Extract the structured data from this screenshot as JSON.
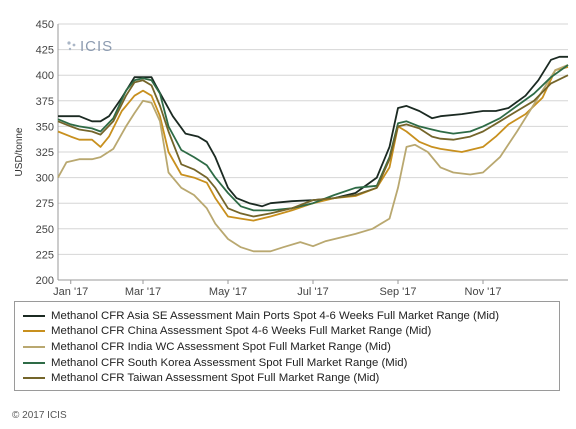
{
  "logo": {
    "text": "ICIS"
  },
  "footer": {
    "copyright": "© 2017 ICIS"
  },
  "chart_data": {
    "type": "line",
    "title": "",
    "xlabel": "",
    "ylabel": "USD/tonne",
    "ylim": [
      200,
      450
    ],
    "xlim": [
      0,
      12
    ],
    "grid": true,
    "legend_position": "bottom",
    "x_ticks": [
      {
        "label": "Jan '17",
        "x": 0.3
      },
      {
        "label": "Mar '17",
        "x": 2
      },
      {
        "label": "May '17",
        "x": 4
      },
      {
        "label": "Jul '17",
        "x": 6
      },
      {
        "label": "Sep '17",
        "x": 8
      },
      {
        "label": "Nov '17",
        "x": 10
      }
    ],
    "y_ticks": [
      200,
      225,
      250,
      275,
      300,
      325,
      350,
      375,
      400,
      425,
      450
    ],
    "series": [
      {
        "name": "Methanol CFR Asia SE Assessment Main Ports Spot 4-6 Weeks Full Market Range (Mid)",
        "color": "#1b2a22",
        "points": [
          [
            0,
            360
          ],
          [
            0.3,
            360
          ],
          [
            0.5,
            360
          ],
          [
            0.8,
            355
          ],
          [
            1,
            355
          ],
          [
            1.2,
            360
          ],
          [
            1.5,
            378
          ],
          [
            1.8,
            398
          ],
          [
            2,
            398
          ],
          [
            2.2,
            398
          ],
          [
            2.3,
            390
          ],
          [
            2.5,
            375
          ],
          [
            2.7,
            360
          ],
          [
            3,
            343
          ],
          [
            3.3,
            340
          ],
          [
            3.5,
            335
          ],
          [
            3.7,
            320
          ],
          [
            4,
            290
          ],
          [
            4.2,
            280
          ],
          [
            4.5,
            275
          ],
          [
            4.8,
            272
          ],
          [
            5,
            275
          ],
          [
            5.5,
            277
          ],
          [
            6,
            278
          ],
          [
            6.5,
            280
          ],
          [
            7,
            285
          ],
          [
            7.5,
            300
          ],
          [
            7.8,
            330
          ],
          [
            8,
            368
          ],
          [
            8.2,
            370
          ],
          [
            8.5,
            365
          ],
          [
            8.8,
            358
          ],
          [
            9,
            360
          ],
          [
            9.5,
            362
          ],
          [
            10,
            365
          ],
          [
            10.3,
            365
          ],
          [
            10.6,
            368
          ],
          [
            11,
            380
          ],
          [
            11.3,
            395
          ],
          [
            11.6,
            415
          ],
          [
            11.8,
            418
          ],
          [
            12,
            418
          ]
        ]
      },
      {
        "name": "Methanol CFR China Assessment Spot 4-6 Weeks Full Market Range (Mid)",
        "color": "#c8901e",
        "points": [
          [
            0,
            345
          ],
          [
            0.3,
            340
          ],
          [
            0.5,
            337
          ],
          [
            0.8,
            337
          ],
          [
            1,
            330
          ],
          [
            1.2,
            340
          ],
          [
            1.5,
            365
          ],
          [
            1.8,
            380
          ],
          [
            2,
            385
          ],
          [
            2.2,
            380
          ],
          [
            2.4,
            360
          ],
          [
            2.6,
            325
          ],
          [
            2.9,
            303
          ],
          [
            3.2,
            300
          ],
          [
            3.5,
            295
          ],
          [
            3.7,
            280
          ],
          [
            4,
            262
          ],
          [
            4.3,
            260
          ],
          [
            4.6,
            258
          ],
          [
            5,
            262
          ],
          [
            5.5,
            268
          ],
          [
            6,
            275
          ],
          [
            6.5,
            280
          ],
          [
            7,
            282
          ],
          [
            7.5,
            290
          ],
          [
            7.8,
            310
          ],
          [
            8,
            350
          ],
          [
            8.2,
            345
          ],
          [
            8.5,
            335
          ],
          [
            8.8,
            330
          ],
          [
            9,
            328
          ],
          [
            9.5,
            325
          ],
          [
            10,
            330
          ],
          [
            10.3,
            340
          ],
          [
            10.6,
            352
          ],
          [
            11,
            362
          ],
          [
            11.4,
            378
          ],
          [
            11.7,
            405
          ],
          [
            12,
            408
          ]
        ]
      },
      {
        "name": "Methanol CFR India WC Assessment Spot Full Market Range (Mid)",
        "color": "#b9a870",
        "points": [
          [
            0,
            300
          ],
          [
            0.2,
            315
          ],
          [
            0.5,
            318
          ],
          [
            0.8,
            318
          ],
          [
            1,
            320
          ],
          [
            1.3,
            328
          ],
          [
            1.6,
            350
          ],
          [
            1.8,
            363
          ],
          [
            2,
            375
          ],
          [
            2.2,
            373
          ],
          [
            2.4,
            355
          ],
          [
            2.6,
            305
          ],
          [
            2.9,
            290
          ],
          [
            3.2,
            283
          ],
          [
            3.5,
            270
          ],
          [
            3.7,
            255
          ],
          [
            4,
            240
          ],
          [
            4.3,
            232
          ],
          [
            4.6,
            228
          ],
          [
            5,
            228
          ],
          [
            5.3,
            232
          ],
          [
            5.7,
            237
          ],
          [
            6,
            233
          ],
          [
            6.3,
            238
          ],
          [
            6.7,
            242
          ],
          [
            7,
            245
          ],
          [
            7.4,
            250
          ],
          [
            7.8,
            260
          ],
          [
            8,
            290
          ],
          [
            8.2,
            330
          ],
          [
            8.4,
            332
          ],
          [
            8.7,
            325
          ],
          [
            9,
            310
          ],
          [
            9.3,
            305
          ],
          [
            9.7,
            303
          ],
          [
            10,
            305
          ],
          [
            10.4,
            320
          ],
          [
            10.8,
            345
          ],
          [
            11.1,
            365
          ],
          [
            11.4,
            385
          ],
          [
            11.7,
            405
          ],
          [
            12,
            410
          ]
        ]
      },
      {
        "name": "Methanol CFR South Korea Assessment Spot Full Market Range (Mid)",
        "color": "#2e6b46",
        "points": [
          [
            0,
            357
          ],
          [
            0.3,
            352
          ],
          [
            0.5,
            350
          ],
          [
            0.8,
            348
          ],
          [
            1,
            345
          ],
          [
            1.3,
            358
          ],
          [
            1.6,
            385
          ],
          [
            1.8,
            395
          ],
          [
            2,
            397
          ],
          [
            2.2,
            395
          ],
          [
            2.4,
            382
          ],
          [
            2.6,
            350
          ],
          [
            2.9,
            327
          ],
          [
            3.2,
            320
          ],
          [
            3.5,
            312
          ],
          [
            3.7,
            300
          ],
          [
            4,
            285
          ],
          [
            4.3,
            272
          ],
          [
            4.6,
            268
          ],
          [
            5,
            268
          ],
          [
            5.5,
            270
          ],
          [
            6,
            275
          ],
          [
            6.5,
            283
          ],
          [
            7,
            290
          ],
          [
            7.5,
            292
          ],
          [
            7.8,
            320
          ],
          [
            8,
            353
          ],
          [
            8.2,
            355
          ],
          [
            8.5,
            350
          ],
          [
            8.8,
            347
          ],
          [
            9,
            345
          ],
          [
            9.3,
            343
          ],
          [
            9.7,
            345
          ],
          [
            10,
            350
          ],
          [
            10.4,
            358
          ],
          [
            10.8,
            370
          ],
          [
            11.2,
            382
          ],
          [
            11.6,
            398
          ],
          [
            12,
            410
          ]
        ]
      },
      {
        "name": "Methanol CFR Taiwan Assessment Spot Full Market Range (Mid)",
        "color": "#74652a",
        "points": [
          [
            0,
            355
          ],
          [
            0.3,
            350
          ],
          [
            0.5,
            347
          ],
          [
            0.8,
            345
          ],
          [
            1,
            342
          ],
          [
            1.3,
            355
          ],
          [
            1.6,
            380
          ],
          [
            1.8,
            393
          ],
          [
            2,
            395
          ],
          [
            2.2,
            390
          ],
          [
            2.4,
            370
          ],
          [
            2.6,
            345
          ],
          [
            2.9,
            313
          ],
          [
            3.2,
            308
          ],
          [
            3.5,
            300
          ],
          [
            3.7,
            290
          ],
          [
            4,
            270
          ],
          [
            4.3,
            265
          ],
          [
            4.6,
            262
          ],
          [
            5,
            265
          ],
          [
            5.5,
            270
          ],
          [
            6,
            278
          ],
          [
            6.5,
            280
          ],
          [
            7,
            283
          ],
          [
            7.5,
            290
          ],
          [
            7.8,
            318
          ],
          [
            8,
            350
          ],
          [
            8.2,
            352
          ],
          [
            8.5,
            348
          ],
          [
            8.8,
            340
          ],
          [
            9,
            338
          ],
          [
            9.3,
            337
          ],
          [
            9.7,
            340
          ],
          [
            10,
            345
          ],
          [
            10.4,
            355
          ],
          [
            10.8,
            365
          ],
          [
            11.2,
            375
          ],
          [
            11.6,
            392
          ],
          [
            12,
            400
          ]
        ]
      }
    ]
  }
}
